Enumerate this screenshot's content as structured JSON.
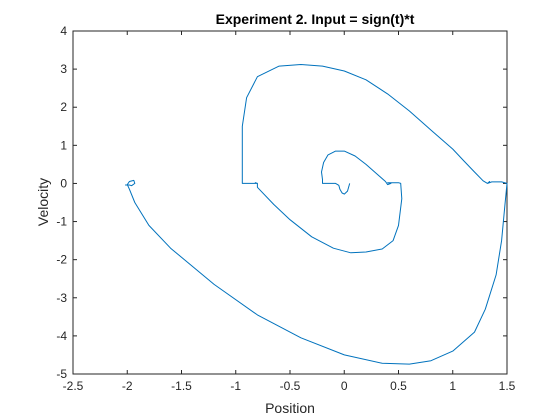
{
  "chart_data": {
    "type": "line",
    "title": "Experiment 2. Input = sign(t)*t",
    "xlabel": "Position",
    "ylabel": "Velocity",
    "xlim": [
      -2.5,
      1.5
    ],
    "ylim": [
      -5,
      4
    ],
    "xticks": [
      -2.5,
      -2,
      -1.5,
      -1,
      -0.5,
      0,
      0.5,
      1,
      1.5
    ],
    "xtick_labels": [
      "-2.5",
      "-2",
      "-1.5",
      "-1",
      "-0.5",
      "0",
      "0.5",
      "1",
      "1.5"
    ],
    "yticks": [
      -5,
      -4,
      -3,
      -2,
      -1,
      0,
      1,
      2,
      3,
      4
    ],
    "ytick_labels": [
      "-5",
      "-4",
      "-3",
      "-2",
      "-1",
      "0",
      "1",
      "2",
      "3",
      "4"
    ],
    "grid": false,
    "box": true,
    "line_color": "#0072BD",
    "series": [
      {
        "x": [
          0.05,
          0.03,
          0.0,
          -0.02,
          -0.04,
          -0.05,
          -0.08,
          -0.12,
          -0.16,
          -0.2,
          -0.2,
          -0.21,
          -0.19,
          -0.15,
          -0.08,
          0.0,
          0.1,
          0.2,
          0.3,
          0.38,
          0.4,
          0.43,
          0.4,
          0.45,
          0.5,
          0.52,
          0.53,
          0.5,
          0.45,
          0.35,
          0.2,
          0.06,
          -0.1,
          -0.3,
          -0.5,
          -0.65,
          -0.8,
          -0.8,
          -0.82,
          -0.8,
          -0.85,
          -0.9,
          -0.94,
          -0.94,
          -0.94,
          -0.9,
          -0.8,
          -0.6,
          -0.4,
          -0.2,
          0.0,
          0.2,
          0.4,
          0.6,
          0.8,
          1.0,
          1.1,
          1.2,
          1.28,
          1.32,
          1.34,
          1.32,
          1.36,
          1.4,
          1.45,
          1.5,
          1.48,
          1.45,
          1.4,
          1.3,
          1.2,
          1.0,
          0.8,
          0.6,
          0.35,
          0.0,
          -0.4,
          -0.8,
          -1.2,
          -1.6,
          -1.8,
          -1.93,
          -1.98,
          -2.0,
          -1.98,
          -1.94,
          -1.93,
          -1.96,
          -1.98,
          -2.0,
          -2.02
        ],
        "y": [
          0.0,
          -0.2,
          -0.28,
          -0.25,
          -0.15,
          -0.05,
          0.0,
          0.0,
          0.0,
          0.0,
          0.1,
          0.3,
          0.55,
          0.75,
          0.85,
          0.85,
          0.72,
          0.5,
          0.25,
          0.05,
          -0.03,
          0.0,
          0.02,
          0.02,
          0.02,
          0.0,
          -0.4,
          -1.1,
          -1.5,
          -1.72,
          -1.8,
          -1.82,
          -1.7,
          -1.4,
          -0.95,
          -0.55,
          -0.1,
          0.0,
          0.02,
          0.0,
          0.0,
          0.0,
          0.0,
          0.5,
          1.5,
          2.25,
          2.8,
          3.08,
          3.12,
          3.08,
          2.95,
          2.72,
          2.35,
          1.9,
          1.4,
          0.9,
          0.6,
          0.3,
          0.07,
          0.0,
          0.05,
          0.0,
          0.04,
          0.04,
          0.04,
          0.0,
          -0.6,
          -1.5,
          -2.4,
          -3.3,
          -3.9,
          -4.4,
          -4.65,
          -4.74,
          -4.72,
          -4.5,
          -4.05,
          -3.45,
          -2.65,
          -1.7,
          -1.1,
          -0.5,
          -0.15,
          -0.03,
          0.05,
          0.08,
          0.0,
          -0.06,
          -0.04,
          -0.04,
          -0.04
        ]
      }
    ]
  }
}
